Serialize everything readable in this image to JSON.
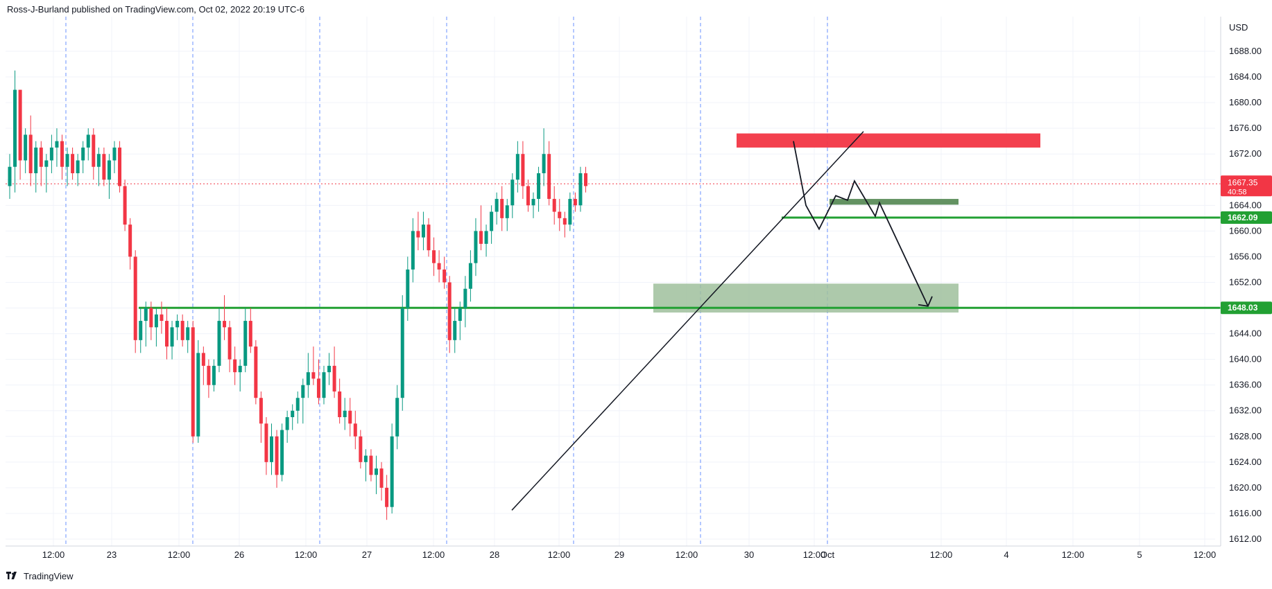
{
  "header": {
    "published_text": "Ross-J-Burland published on TradingView.com, Oct 02, 2022 20:19 UTC-6"
  },
  "footer": {
    "brand": "TradingView"
  },
  "chart_data": {
    "type": "candlestick",
    "currency": "USD",
    "ylim": [
      1610,
      1692
    ],
    "y_ticks": [
      "1612.00",
      "1616.00",
      "1620.00",
      "1624.00",
      "1628.00",
      "1632.00",
      "1636.00",
      "1640.00",
      "1644.00",
      "1648.00",
      "1652.00",
      "1656.00",
      "1660.00",
      "1664.00",
      "1668.00",
      "1672.00",
      "1676.00",
      "1680.00",
      "1684.00",
      "1688.00"
    ],
    "x_labels": [
      "12:00",
      "23",
      "12:00",
      "26",
      "12:00",
      "27",
      "12:00",
      "28",
      "12:00",
      "29",
      "12:00",
      "30",
      "12:00",
      "Oct",
      "12:00",
      "4",
      "12:00",
      "5",
      "12:00"
    ],
    "current_price": {
      "value": "1667.35",
      "countdown": "40:58",
      "color": "#f23645"
    },
    "levels": [
      {
        "value": "1662.09",
        "color": "#22a033"
      },
      {
        "value": "1648.03",
        "color": "#22a033"
      }
    ],
    "candles_ohlc": [
      [
        1667,
        1672,
        1665,
        1670
      ],
      [
        1670,
        1685,
        1666,
        1682
      ],
      [
        1682,
        1682,
        1668,
        1671
      ],
      [
        1671,
        1676,
        1669,
        1675
      ],
      [
        1675,
        1678,
        1667,
        1669
      ],
      [
        1669,
        1674,
        1666,
        1673
      ],
      [
        1673,
        1674,
        1667,
        1670
      ],
      [
        1670,
        1672,
        1666,
        1671
      ],
      [
        1671,
        1675,
        1669,
        1673
      ],
      [
        1673,
        1676,
        1670,
        1674
      ],
      [
        1674,
        1675,
        1668,
        1670
      ],
      [
        1670,
        1673,
        1667,
        1672
      ],
      [
        1672,
        1673,
        1668,
        1669
      ],
      [
        1669,
        1672,
        1667,
        1671
      ],
      [
        1671,
        1674,
        1669,
        1673
      ],
      [
        1673,
        1676,
        1671,
        1675
      ],
      [
        1675,
        1676,
        1668,
        1670
      ],
      [
        1670,
        1673,
        1667,
        1672
      ],
      [
        1672,
        1673,
        1667,
        1668
      ],
      [
        1668,
        1672,
        1665,
        1671
      ],
      [
        1671,
        1674,
        1669,
        1673
      ],
      [
        1673,
        1674,
        1666,
        1667
      ],
      [
        1667,
        1668,
        1660,
        1661
      ],
      [
        1661,
        1662,
        1654,
        1656
      ],
      [
        1656,
        1657,
        1641,
        1643
      ],
      [
        1643,
        1648,
        1641,
        1646
      ],
      [
        1646,
        1649,
        1642,
        1648
      ],
      [
        1648,
        1649,
        1643,
        1645
      ],
      [
        1645,
        1648,
        1642,
        1647
      ],
      [
        1647,
        1649,
        1644,
        1646
      ],
      [
        1646,
        1648,
        1640,
        1642
      ],
      [
        1642,
        1646,
        1640,
        1645
      ],
      [
        1645,
        1647,
        1643,
        1646
      ],
      [
        1646,
        1647,
        1642,
        1643
      ],
      [
        1643,
        1646,
        1641,
        1645
      ],
      [
        1645,
        1646,
        1627,
        1628
      ],
      [
        1628,
        1643,
        1627,
        1641
      ],
      [
        1641,
        1642,
        1636,
        1639
      ],
      [
        1639,
        1640,
        1634,
        1636
      ],
      [
        1636,
        1640,
        1635,
        1639
      ],
      [
        1639,
        1648,
        1638,
        1646
      ],
      [
        1646,
        1650,
        1643,
        1645
      ],
      [
        1645,
        1646,
        1638,
        1640
      ],
      [
        1640,
        1642,
        1636,
        1638
      ],
      [
        1638,
        1640,
        1635,
        1639
      ],
      [
        1639,
        1648,
        1638,
        1646
      ],
      [
        1646,
        1648,
        1641,
        1642
      ],
      [
        1642,
        1643,
        1633,
        1634
      ],
      [
        1634,
        1635,
        1627,
        1630
      ],
      [
        1630,
        1631,
        1622,
        1624
      ],
      [
        1624,
        1630,
        1622,
        1628
      ],
      [
        1628,
        1629,
        1620,
        1622
      ],
      [
        1622,
        1630,
        1621,
        1629
      ],
      [
        1629,
        1632,
        1627,
        1631
      ],
      [
        1631,
        1633,
        1629,
        1632
      ],
      [
        1632,
        1635,
        1630,
        1634
      ],
      [
        1634,
        1637,
        1630,
        1636
      ],
      [
        1636,
        1641,
        1634,
        1638
      ],
      [
        1638,
        1642,
        1636,
        1637
      ],
      [
        1637,
        1640,
        1633,
        1634
      ],
      [
        1634,
        1639,
        1633,
        1638
      ],
      [
        1638,
        1641,
        1636,
        1639
      ],
      [
        1639,
        1642,
        1634,
        1635
      ],
      [
        1635,
        1637,
        1630,
        1631
      ],
      [
        1631,
        1634,
        1629,
        1632
      ],
      [
        1632,
        1634,
        1628,
        1630
      ],
      [
        1630,
        1632,
        1626,
        1628
      ],
      [
        1628,
        1629,
        1623,
        1624
      ],
      [
        1624,
        1626,
        1621,
        1625
      ],
      [
        1625,
        1626,
        1621,
        1622
      ],
      [
        1622,
        1625,
        1619,
        1623
      ],
      [
        1623,
        1624,
        1618,
        1620
      ],
      [
        1620,
        1622,
        1615,
        1617
      ],
      [
        1617,
        1630,
        1616,
        1628
      ],
      [
        1628,
        1636,
        1626,
        1634
      ],
      [
        1634,
        1650,
        1632,
        1648
      ],
      [
        1648,
        1656,
        1646,
        1654
      ],
      [
        1654,
        1662,
        1652,
        1660
      ],
      [
        1660,
        1663,
        1657,
        1659
      ],
      [
        1659,
        1663,
        1657,
        1661
      ],
      [
        1661,
        1662,
        1656,
        1657
      ],
      [
        1657,
        1659,
        1653,
        1655
      ],
      [
        1655,
        1657,
        1652,
        1654
      ],
      [
        1654,
        1656,
        1651,
        1652
      ],
      [
        1652,
        1653,
        1641,
        1643
      ],
      [
        1643,
        1648,
        1641,
        1646
      ],
      [
        1646,
        1649,
        1643,
        1648
      ],
      [
        1648,
        1653,
        1645,
        1651
      ],
      [
        1651,
        1657,
        1649,
        1655
      ],
      [
        1655,
        1662,
        1653,
        1660
      ],
      [
        1660,
        1664,
        1657,
        1658
      ],
      [
        1658,
        1661,
        1656,
        1660
      ],
      [
        1660,
        1664,
        1658,
        1663
      ],
      [
        1663,
        1666,
        1661,
        1665
      ],
      [
        1665,
        1667,
        1660,
        1662
      ],
      [
        1662,
        1665,
        1660,
        1664
      ],
      [
        1664,
        1669,
        1662,
        1668
      ],
      [
        1668,
        1674,
        1666,
        1672
      ],
      [
        1672,
        1674,
        1665,
        1667
      ],
      [
        1667,
        1668,
        1663,
        1664
      ],
      [
        1664,
        1666,
        1662,
        1665
      ],
      [
        1665,
        1670,
        1663,
        1669
      ],
      [
        1669,
        1676,
        1667,
        1672
      ],
      [
        1672,
        1674,
        1664,
        1665
      ],
      [
        1665,
        1667,
        1661,
        1663
      ],
      [
        1663,
        1665,
        1660,
        1662
      ],
      [
        1662,
        1663,
        1659,
        1661
      ],
      [
        1661,
        1666,
        1660,
        1665
      ],
      [
        1665,
        1666,
        1663,
        1664
      ],
      [
        1664,
        1670,
        1663,
        1669
      ],
      [
        1669,
        1670,
        1666,
        1667
      ]
    ],
    "trendline": {
      "from": [
        "28 ~03:00",
        1616.5
      ],
      "to": [
        "Oct ~04:00",
        1675.5
      ]
    },
    "zones": [
      {
        "name": "resistance",
        "color": "#f23645",
        "y_range": [
          1673,
          1675.2
        ]
      },
      {
        "name": "small-support",
        "color": "#5b8c5a",
        "y_range": [
          1664.1,
          1665
        ]
      },
      {
        "name": "demand",
        "color": "#9fbf9c",
        "y_range": [
          1647.3,
          1651.8
        ]
      }
    ],
    "projection_path": [
      [
        1662,
        1665
      ],
      [
        1665.5,
        1675
      ],
      [
        1668.5,
        1668.5
      ],
      [
        1674,
        1661
      ],
      [
        1675.5,
        1665.5
      ],
      [
        1682,
        1648
      ]
    ]
  }
}
